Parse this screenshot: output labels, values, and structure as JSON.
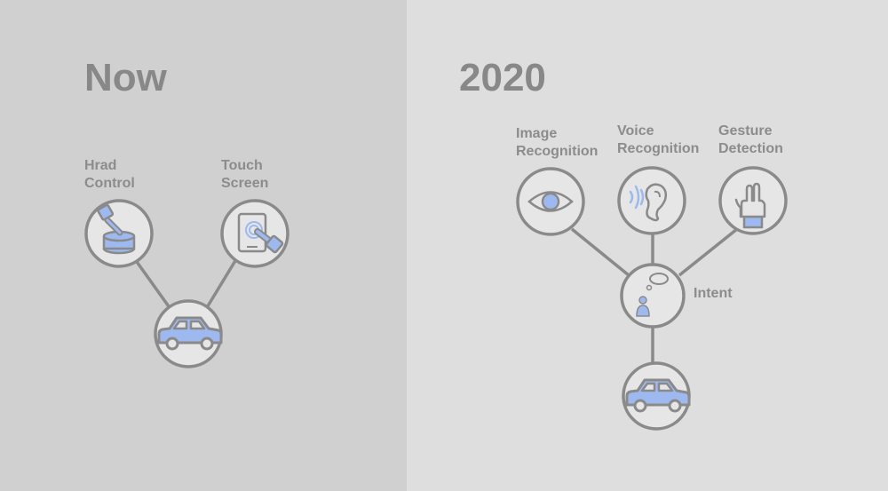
{
  "now": {
    "title": "Now",
    "hard_control_label": "Hrad\nControl",
    "touch_screen_label": "Touch\nScreen"
  },
  "future": {
    "title": "2020",
    "image_recognition_label": "Image\nRecognition",
    "voice_recognition_label": "Voice\nRecognition",
    "gesture_detection_label": "Gesture\nDetection",
    "intent_label": "Intent"
  },
  "colors": {
    "left_background": "#d0d0d0",
    "right_background": "#dedede",
    "node_stroke": "#8a8a8a",
    "node_fill": "#e6e6e6",
    "accent_blue": "#9db9ef",
    "text_gray": "#8a8a8a"
  },
  "icons": {
    "hard_control": "knob-hand-icon",
    "touch_screen": "tablet-touch-icon",
    "car": "car-icon",
    "image_recognition": "eye-icon",
    "voice_recognition": "ear-icon",
    "gesture_detection": "gesture-hand-icon",
    "intent": "thinking-person-icon"
  }
}
